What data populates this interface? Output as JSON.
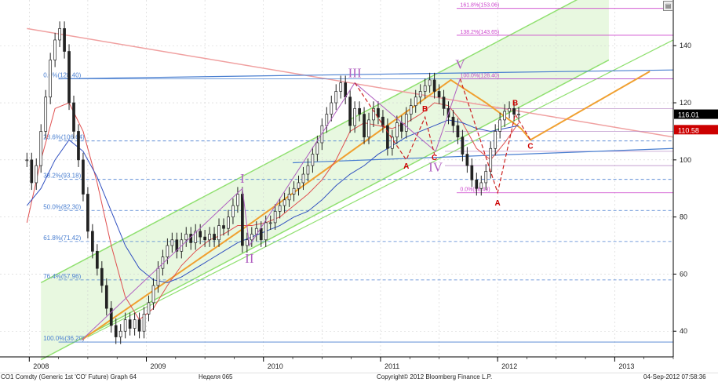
{
  "chart_data": {
    "type": "line",
    "title": "",
    "series": [
      {
        "key": "price",
        "x": [
          2007.98,
          2008.02,
          2008.06,
          2008.1,
          2008.14,
          2008.18,
          2008.22,
          2008.26,
          2008.3,
          2008.34,
          2008.38,
          2008.42,
          2008.46,
          2008.5,
          2008.54,
          2008.58,
          2008.62,
          2008.66,
          2008.7,
          2008.74,
          2008.78,
          2008.82,
          2008.86,
          2008.9,
          2008.94,
          2008.98,
          2009.02,
          2009.06,
          2009.1,
          2009.14,
          2009.18,
          2009.22,
          2009.26,
          2009.3,
          2009.34,
          2009.38,
          2009.42,
          2009.46,
          2009.5,
          2009.54,
          2009.58,
          2009.62,
          2009.66,
          2009.7,
          2009.74,
          2009.78,
          2009.82,
          2009.86,
          2009.9,
          2009.94,
          2009.98,
          2010.02,
          2010.06,
          2010.1,
          2010.14,
          2010.18,
          2010.22,
          2010.26,
          2010.3,
          2010.34,
          2010.38,
          2010.42,
          2010.46,
          2010.5,
          2010.54,
          2010.58,
          2010.62,
          2010.66,
          2010.7,
          2010.74,
          2010.78,
          2010.82,
          2010.86,
          2010.9,
          2010.94,
          2010.98,
          2011.02,
          2011.06,
          2011.1,
          2011.14,
          2011.18,
          2011.22,
          2011.26,
          2011.3,
          2011.34,
          2011.38,
          2011.42,
          2011.46,
          2011.5,
          2011.54,
          2011.58,
          2011.62,
          2011.66,
          2011.7,
          2011.74,
          2011.78,
          2011.82,
          2011.86,
          2011.9,
          2011.94,
          2011.98,
          2012.02,
          2012.06,
          2012.1,
          2012.14,
          2012.18
        ],
        "values": [
          100,
          92,
          98,
          110,
          122,
          135,
          142,
          146,
          138,
          120,
          110,
          100,
          88,
          75,
          68,
          62,
          56,
          48,
          42,
          38,
          40,
          44,
          41,
          44,
          40,
          46,
          50,
          56,
          62,
          66,
          70,
          72,
          68,
          72,
          74,
          71,
          75,
          73,
          72,
          74,
          72,
          77,
          76,
          80,
          84,
          88,
          70,
          72,
          74,
          76,
          72,
          78,
          78,
          82,
          84,
          86,
          88,
          90,
          92,
          95,
          98,
          102,
          106,
          112,
          116,
          120,
          124,
          127,
          122,
          112,
          118,
          116,
          108,
          114,
          118,
          115,
          112,
          104,
          108,
          113,
          110,
          116,
          119,
          122,
          124,
          126,
          128,
          124,
          122,
          118,
          115,
          112,
          108,
          102,
          98,
          93,
          90,
          92,
          96,
          104,
          110,
          114,
          117,
          118,
          116,
          116
        ]
      },
      {
        "key": "ma-red",
        "x": [
          2007.98,
          2008.1,
          2008.22,
          2008.34,
          2008.46,
          2008.58,
          2008.7,
          2008.82,
          2008.94,
          2009.06,
          2009.18,
          2009.3,
          2009.42,
          2009.54,
          2009.66,
          2009.78,
          2009.9,
          2010.02,
          2010.14,
          2010.26,
          2010.38,
          2010.5,
          2010.62,
          2010.74,
          2010.86,
          2010.98,
          2011.1,
          2011.22,
          2011.34,
          2011.46,
          2011.58,
          2011.7,
          2011.82,
          2011.94,
          2012.06,
          2012.18
        ],
        "values": [
          78,
          100,
          118,
          120,
          110,
          92,
          70,
          52,
          44,
          48,
          56,
          63,
          68,
          72,
          74,
          77,
          77,
          78,
          80,
          84,
          88,
          93,
          100,
          110,
          113,
          112,
          111,
          113,
          116,
          120,
          119,
          113,
          104,
          100,
          106,
          113
        ]
      },
      {
        "key": "ma-blue",
        "x": [
          2007.98,
          2008.1,
          2008.22,
          2008.34,
          2008.46,
          2008.58,
          2008.7,
          2008.82,
          2008.94,
          2009.06,
          2009.18,
          2009.3,
          2009.42,
          2009.54,
          2009.66,
          2009.78,
          2009.9,
          2010.02,
          2010.14,
          2010.26,
          2010.38,
          2010.5,
          2010.62,
          2010.74,
          2010.86,
          2010.98,
          2011.1,
          2011.22,
          2011.34,
          2011.46,
          2011.58,
          2011.7,
          2011.82,
          2011.94,
          2012.06,
          2012.18
        ],
        "values": [
          84,
          90,
          100,
          107,
          103,
          94,
          82,
          70,
          62,
          58,
          57,
          59,
          62,
          65,
          68,
          71,
          73,
          75,
          77,
          80,
          82,
          86,
          91,
          95,
          98,
          102,
          105,
          108,
          110,
          112,
          114,
          113,
          111,
          110,
          111,
          112
        ]
      }
    ],
    "fib_levels": [
      {
        "label": "161.8%(153.06)",
        "value": 153.06
      },
      {
        "label": "138.2%(143.65)",
        "value": 143.65
      },
      {
        "label": "100.0%(128.40)",
        "value": 128.4
      },
      {
        "label": "0.0%(88.49)",
        "value": 88.49
      },
      {
        "label": "0.0%(128.40)",
        "value": 128.4
      },
      {
        "label": "23.6%(106.64)",
        "value": 106.64
      },
      {
        "label": "38.2%(93.18)",
        "value": 93.18
      },
      {
        "label": "50.0%(82.30)",
        "value": 82.3
      },
      {
        "label": "61.8%(71.42)",
        "value": 71.42
      },
      {
        "label": "76.4%(57.96)",
        "value": 57.96
      },
      {
        "label": "100.0%(36.20)",
        "value": 36.2
      }
    ],
    "wave_labels": [
      {
        "text": "I",
        "x": 2009.82,
        "y": 92,
        "color": "#b060c0"
      },
      {
        "text": "II",
        "x": 2009.88,
        "y": 64,
        "color": "#b060c0"
      },
      {
        "text": "III",
        "x": 2010.78,
        "y": 129,
        "color": "#b060c0"
      },
      {
        "text": "IV",
        "x": 2011.47,
        "y": 96,
        "color": "#b060c0"
      },
      {
        "text": "V",
        "x": 2011.68,
        "y": 132,
        "color": "#b060c0"
      },
      {
        "text": "A",
        "x": 2011.22,
        "y": 97,
        "color": "#cc0000"
      },
      {
        "text": "B",
        "x": 2011.38,
        "y": 117,
        "color": "#cc0000"
      },
      {
        "text": "C",
        "x": 2011.46,
        "y": 100,
        "color": "#cc0000"
      },
      {
        "text": "A",
        "x": 2012.0,
        "y": 84,
        "color": "#cc0000"
      },
      {
        "text": "B",
        "x": 2012.15,
        "y": 119,
        "color": "#cc0000"
      },
      {
        "text": "C",
        "x": 2012.28,
        "y": 104,
        "color": "#cc0000"
      }
    ],
    "x_axis": {
      "range": [
        2007.75,
        2013.5
      ],
      "tick_labels": [
        "2008",
        "2009",
        "2010",
        "2011",
        "2012",
        "2013"
      ],
      "tick_positions": [
        2008.0,
        2009.0,
        2010.0,
        2011.0,
        2012.0,
        2013.0
      ]
    },
    "y_axis": {
      "range": [
        31,
        156
      ],
      "ticks": [
        40,
        60,
        80,
        100,
        120,
        140
      ],
      "position": "right"
    },
    "price_tags": [
      {
        "label": "116.01",
        "value": 116.01,
        "bg": "#000000"
      },
      {
        "label": "110.58",
        "value": 110.58,
        "bg": "#cc0000"
      }
    ],
    "grid": true,
    "colors": {
      "channel_fill": "#e8f8e0",
      "channel_line": "#90e070",
      "trend_orange": "#f0a030",
      "fib_pink": "#cc44cc",
      "fib_blue": "#4a7fd0",
      "price": "#222222",
      "ma_red": "#e05050",
      "ma_blue": "#3050c0",
      "wave_purple": "#b060c0"
    }
  },
  "footer": {
    "left": "CO1 Comdty (Generic 1st 'CO' Future) Graph 64",
    "middle": "Неделя 065",
    "copyright": "Copyright© 2012 Bloomberg Finance L.P.",
    "timestamp": "04-Sep-2012 07:58:36"
  }
}
